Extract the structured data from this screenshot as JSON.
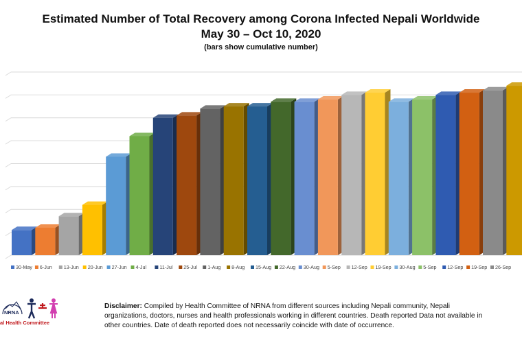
{
  "chart_data": {
    "type": "bar",
    "title": "Estimated Number of Total Recovery among Corona Infected Nepali Worldwide",
    "subtitle": "May 30 – Oct 10, 2020",
    "note": "(bars show cumulative number)",
    "categories": [
      "30-May",
      "6-Jun",
      "13-Jun",
      "20-Jun",
      "27-Jun",
      "4-Jul",
      "11-Jul",
      "25-Jul",
      "1-Aug",
      "8-Aug",
      "15-Aug",
      "22-Aug",
      "30-Aug",
      "5-Sep",
      "12-Sep",
      "19-Sep",
      "30-Aug",
      "5-Sep",
      "12-Sep",
      "19-Sep",
      "26-Sep",
      ""
    ],
    "values": [
      1.1,
      1.2,
      1.7,
      2.2,
      4.3,
      5.2,
      6.0,
      6.1,
      6.4,
      6.5,
      6.5,
      6.7,
      6.7,
      6.8,
      7.0,
      7.1,
      6.7,
      6.8,
      7.0,
      7.1,
      7.2,
      7.4
    ],
    "colors": [
      "#4472c4",
      "#ed7d31",
      "#a5a5a5",
      "#ffc000",
      "#5b9bd5",
      "#70ad47",
      "#264478",
      "#9e480e",
      "#636363",
      "#997300",
      "#255e91",
      "#43682b",
      "#698ed0",
      "#f1975a",
      "#b7b7b7",
      "#ffcd33",
      "#7cafdd",
      "#8cc168",
      "#2f5bb1",
      "#d26012",
      "#8a8a8a",
      "#cc9900"
    ],
    "ylim": [
      0,
      8
    ],
    "grid": true,
    "legend": "bottom"
  },
  "logo": {
    "text": "NRNA",
    "caption": "al Health Committee",
    "accent_red": "#c0181c",
    "accent_pink": "#d23fb0",
    "accent_navy": "#1c2a5a"
  },
  "disclaimer": {
    "label": "Disclaimer:",
    "text": "Compiled by Health Committee of NRNA from different sources including Nepali community,  Nepali organizations, doctors, nurses and health professionals working in different countries. Death reported  Data not available in other countries. Date of death reported  does not necessarily coincide with date of occurrence."
  }
}
